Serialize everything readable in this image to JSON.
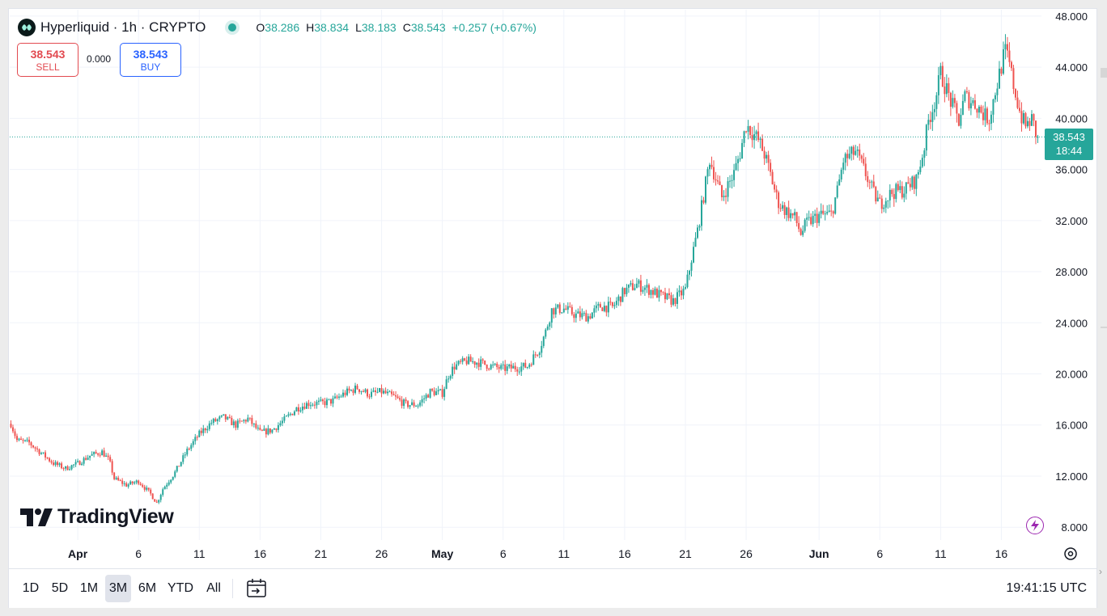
{
  "header": {
    "symbol": "Hyperliquid · 1h · CRYPTO",
    "ohlc": {
      "o_label": "O",
      "o": "38.286",
      "h_label": "H",
      "h": "38.834",
      "l_label": "L",
      "l": "38.183",
      "c_label": "C",
      "c": "38.543",
      "change": "+0.257 (+0.67%)"
    }
  },
  "trade": {
    "sell_price": "38.543",
    "sell_label": "SELL",
    "spread": "0.000",
    "buy_price": "38.543",
    "buy_label": "BUY"
  },
  "price_tag": {
    "price": "38.543",
    "countdown": "18:44"
  },
  "watermark": "TradingView",
  "bottom": {
    "ranges": [
      "1D",
      "5D",
      "1M",
      "3M",
      "6M",
      "YTD",
      "All"
    ],
    "active_range": "3M",
    "clock": "19:41:15 UTC"
  },
  "icons": {
    "logo": "hyperliquid-logo-icon",
    "goto": "calendar-goto-icon",
    "bolt": "lightning-icon",
    "gear": "gear-icon"
  },
  "colors": {
    "up": "#26a69a",
    "down": "#ef5350",
    "last_price_line": "#26a69a",
    "sell": "#e24a50",
    "buy": "#2962ff"
  },
  "chart_data": {
    "type": "candlestick",
    "timeframe": "1h",
    "y_ticks": [
      "8.000",
      "12.000",
      "16.000",
      "20.000",
      "24.000",
      "28.000",
      "32.000",
      "36.000",
      "40.000",
      "44.000",
      "48.000"
    ],
    "ylim": [
      7.0,
      48.5
    ],
    "x_ticks": [
      "Apr",
      "6",
      "11",
      "16",
      "21",
      "26",
      "May",
      "6",
      "11",
      "16",
      "21",
      "26",
      "Jun",
      "6",
      "11",
      "16"
    ],
    "x_tick_days": [
      1,
      6,
      11,
      16,
      21,
      26,
      31,
      36,
      41,
      46,
      51,
      56,
      62,
      67,
      72,
      77
    ],
    "x_range_days": [
      -4.6,
      80.3
    ],
    "last_price": 38.543,
    "close_path": [
      [
        -4.5,
        16.1
      ],
      [
        -4.0,
        14.8
      ],
      [
        -3.0,
        14.6
      ],
      [
        -2.0,
        13.8
      ],
      [
        -1.0,
        13.0
      ],
      [
        0.0,
        12.6
      ],
      [
        1.0,
        13.0
      ],
      [
        2.0,
        13.6
      ],
      [
        3.0,
        13.9
      ],
      [
        3.6,
        13.2
      ],
      [
        4.0,
        11.8
      ],
      [
        5.0,
        11.3
      ],
      [
        6.0,
        11.6
      ],
      [
        7.0,
        10.6
      ],
      [
        7.5,
        9.9
      ],
      [
        8.0,
        11.0
      ],
      [
        9.0,
        12.3
      ],
      [
        10.0,
        14.0
      ],
      [
        11.0,
        15.3
      ],
      [
        12.0,
        16.2
      ],
      [
        13.0,
        16.6
      ],
      [
        14.0,
        16.0
      ],
      [
        15.0,
        16.5
      ],
      [
        16.0,
        15.4
      ],
      [
        17.0,
        15.6
      ],
      [
        18.0,
        16.4
      ],
      [
        19.0,
        17.3
      ],
      [
        20.0,
        17.7
      ],
      [
        21.0,
        17.7
      ],
      [
        22.0,
        17.9
      ],
      [
        23.0,
        18.5
      ],
      [
        24.0,
        18.9
      ],
      [
        25.0,
        18.4
      ],
      [
        26.0,
        18.6
      ],
      [
        27.0,
        18.2
      ],
      [
        28.0,
        17.6
      ],
      [
        29.0,
        17.6
      ],
      [
        30.0,
        18.6
      ],
      [
        31.0,
        18.5
      ],
      [
        31.5,
        19.9
      ],
      [
        32.0,
        20.6
      ],
      [
        33.0,
        21.0
      ],
      [
        34.0,
        20.9
      ],
      [
        35.0,
        20.6
      ],
      [
        36.0,
        20.4
      ],
      [
        37.0,
        20.5
      ],
      [
        38.0,
        20.6
      ],
      [
        39.0,
        22.0
      ],
      [
        39.5,
        23.3
      ],
      [
        40.0,
        25.0
      ],
      [
        41.0,
        25.1
      ],
      [
        42.0,
        24.6
      ],
      [
        43.0,
        24.5
      ],
      [
        44.0,
        25.3
      ],
      [
        45.0,
        25.2
      ],
      [
        46.0,
        26.5
      ],
      [
        47.0,
        27.0
      ],
      [
        48.0,
        26.6
      ],
      [
        49.0,
        26.1
      ],
      [
        50.0,
        25.7
      ],
      [
        51.0,
        26.6
      ],
      [
        51.5,
        29.0
      ],
      [
        52.0,
        31.2
      ],
      [
        52.6,
        34.5
      ],
      [
        53.0,
        36.8
      ],
      [
        54.0,
        33.8
      ],
      [
        55.0,
        35.7
      ],
      [
        55.5,
        37.3
      ],
      [
        56.0,
        39.5
      ],
      [
        57.0,
        38.3
      ],
      [
        57.5,
        37.2
      ],
      [
        58.0,
        35.6
      ],
      [
        58.6,
        33.5
      ],
      [
        59.0,
        33.0
      ],
      [
        60.0,
        32.2
      ],
      [
        60.5,
        31.0
      ],
      [
        61.0,
        31.8
      ],
      [
        62.0,
        32.4
      ],
      [
        63.0,
        32.5
      ],
      [
        63.5,
        34.3
      ],
      [
        64.0,
        36.7
      ],
      [
        65.0,
        37.4
      ],
      [
        66.0,
        35.3
      ],
      [
        66.5,
        34.1
      ],
      [
        67.0,
        33.3
      ],
      [
        68.0,
        34.2
      ],
      [
        69.0,
        34.4
      ],
      [
        70.0,
        35.2
      ],
      [
        70.6,
        37.5
      ],
      [
        71.0,
        39.8
      ],
      [
        71.6,
        41.6
      ],
      [
        72.0,
        43.5
      ],
      [
        73.0,
        40.9
      ],
      [
        73.5,
        39.8
      ],
      [
        74.0,
        41.7
      ],
      [
        75.0,
        41.0
      ],
      [
        75.6,
        40.2
      ],
      [
        76.0,
        40.0
      ],
      [
        76.5,
        42.1
      ],
      [
        77.0,
        44.1
      ],
      [
        77.3,
        45.3
      ],
      [
        77.6,
        44.5
      ],
      [
        78.0,
        42.6
      ],
      [
        78.6,
        40.2
      ],
      [
        79.0,
        39.4
      ],
      [
        79.5,
        39.9
      ],
      [
        80.0,
        38.543
      ]
    ]
  }
}
